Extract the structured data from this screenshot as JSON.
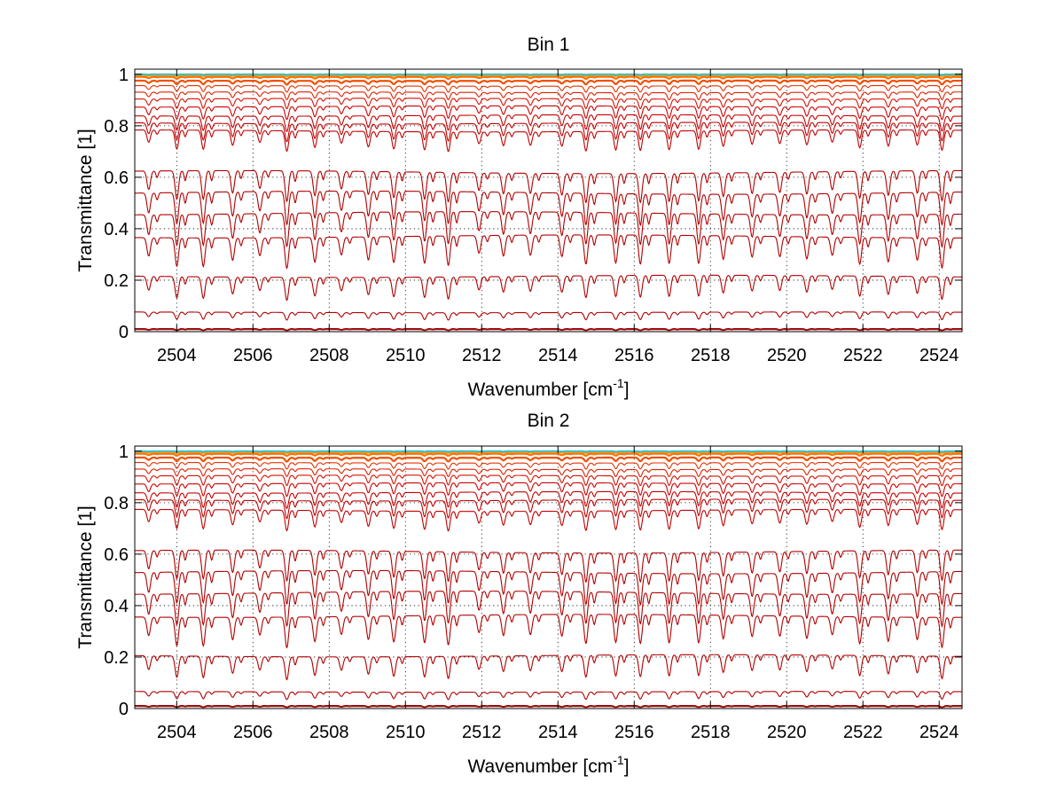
{
  "chart_data": [
    {
      "type": "line",
      "title": "Bin 1",
      "xlabel": "Wavenumber [cm",
      "xlabel_superscript": "-1",
      "xlabel_suffix": "]",
      "ylabel": "Transmittance [1]",
      "xlim": [
        2502.9,
        2524.6
      ],
      "ylim": [
        0,
        1.02
      ],
      "xticks": [
        "2504",
        "2506",
        "2508",
        "2510",
        "2512",
        "2514",
        "2516",
        "2518",
        "2520",
        "2522",
        "2524"
      ],
      "yticks": [
        "0",
        "0.2",
        "0.4",
        "0.6",
        "0.8",
        "1"
      ],
      "grid": true,
      "line_period": 0.72,
      "series": [
        {
          "baseline": 0.008,
          "depth": 0.004,
          "color": "#8b0000"
        },
        {
          "baseline": 0.012,
          "depth": 0.006,
          "color": "#a00000"
        },
        {
          "baseline": 0.075,
          "depth": 0.03,
          "color": "#b00000"
        },
        {
          "baseline": 0.215,
          "depth": 0.09,
          "color": "#b00000"
        },
        {
          "baseline": 0.37,
          "depth": 0.12,
          "color": "#b00000"
        },
        {
          "baseline": 0.46,
          "depth": 0.13,
          "color": "#b00000"
        },
        {
          "baseline": 0.54,
          "depth": 0.13,
          "color": "#b00000"
        },
        {
          "baseline": 0.62,
          "depth": 0.12,
          "color": "#b00000"
        },
        {
          "baseline": 0.78,
          "depth": 0.08,
          "color": "#c00000"
        },
        {
          "baseline": 0.81,
          "depth": 0.07,
          "color": "#c00000"
        },
        {
          "baseline": 0.84,
          "depth": 0.06,
          "color": "#c80000"
        },
        {
          "baseline": 0.875,
          "depth": 0.05,
          "color": "#d00000"
        },
        {
          "baseline": 0.905,
          "depth": 0.04,
          "color": "#d81000"
        },
        {
          "baseline": 0.93,
          "depth": 0.03,
          "color": "#e02000"
        },
        {
          "baseline": 0.955,
          "depth": 0.025,
          "color": "#e83000"
        },
        {
          "baseline": 0.975,
          "depth": 0.015,
          "color": "#f05000"
        },
        {
          "baseline": 0.99,
          "depth": 0.008,
          "color": "#ff7000"
        },
        {
          "baseline": 0.997,
          "depth": 0.004,
          "color": "#ff9000"
        },
        {
          "baseline": 1.0,
          "depth": 0.002,
          "color": "#40c0c0"
        }
      ]
    },
    {
      "type": "line",
      "title": "Bin 2",
      "xlabel": "Wavenumber [cm",
      "xlabel_superscript": "-1",
      "xlabel_suffix": "]",
      "ylabel": "Transmittance [1]",
      "xlim": [
        2502.9,
        2524.6
      ],
      "ylim": [
        0,
        1.02
      ],
      "xticks": [
        "2504",
        "2506",
        "2508",
        "2510",
        "2512",
        "2514",
        "2516",
        "2518",
        "2520",
        "2522",
        "2524"
      ],
      "yticks": [
        "0",
        "0.2",
        "0.4",
        "0.6",
        "0.8",
        "1"
      ],
      "grid": true,
      "line_period": 0.72,
      "series": [
        {
          "baseline": 0.008,
          "depth": 0.004,
          "color": "#8b0000"
        },
        {
          "baseline": 0.012,
          "depth": 0.006,
          "color": "#a00000"
        },
        {
          "baseline": 0.065,
          "depth": 0.03,
          "color": "#b00000"
        },
        {
          "baseline": 0.205,
          "depth": 0.09,
          "color": "#b00000"
        },
        {
          "baseline": 0.36,
          "depth": 0.12,
          "color": "#b00000"
        },
        {
          "baseline": 0.45,
          "depth": 0.13,
          "color": "#b00000"
        },
        {
          "baseline": 0.53,
          "depth": 0.13,
          "color": "#b00000"
        },
        {
          "baseline": 0.61,
          "depth": 0.12,
          "color": "#b00000"
        },
        {
          "baseline": 0.77,
          "depth": 0.08,
          "color": "#c00000"
        },
        {
          "baseline": 0.81,
          "depth": 0.07,
          "color": "#c00000"
        },
        {
          "baseline": 0.84,
          "depth": 0.06,
          "color": "#c80000"
        },
        {
          "baseline": 0.875,
          "depth": 0.05,
          "color": "#d00000"
        },
        {
          "baseline": 0.905,
          "depth": 0.04,
          "color": "#d81000"
        },
        {
          "baseline": 0.93,
          "depth": 0.03,
          "color": "#e02000"
        },
        {
          "baseline": 0.955,
          "depth": 0.025,
          "color": "#e83000"
        },
        {
          "baseline": 0.975,
          "depth": 0.015,
          "color": "#f05000"
        },
        {
          "baseline": 0.99,
          "depth": 0.008,
          "color": "#ff7000"
        },
        {
          "baseline": 0.997,
          "depth": 0.004,
          "color": "#ff9000"
        },
        {
          "baseline": 1.0,
          "depth": 0.002,
          "color": "#40c0c0"
        }
      ]
    }
  ]
}
